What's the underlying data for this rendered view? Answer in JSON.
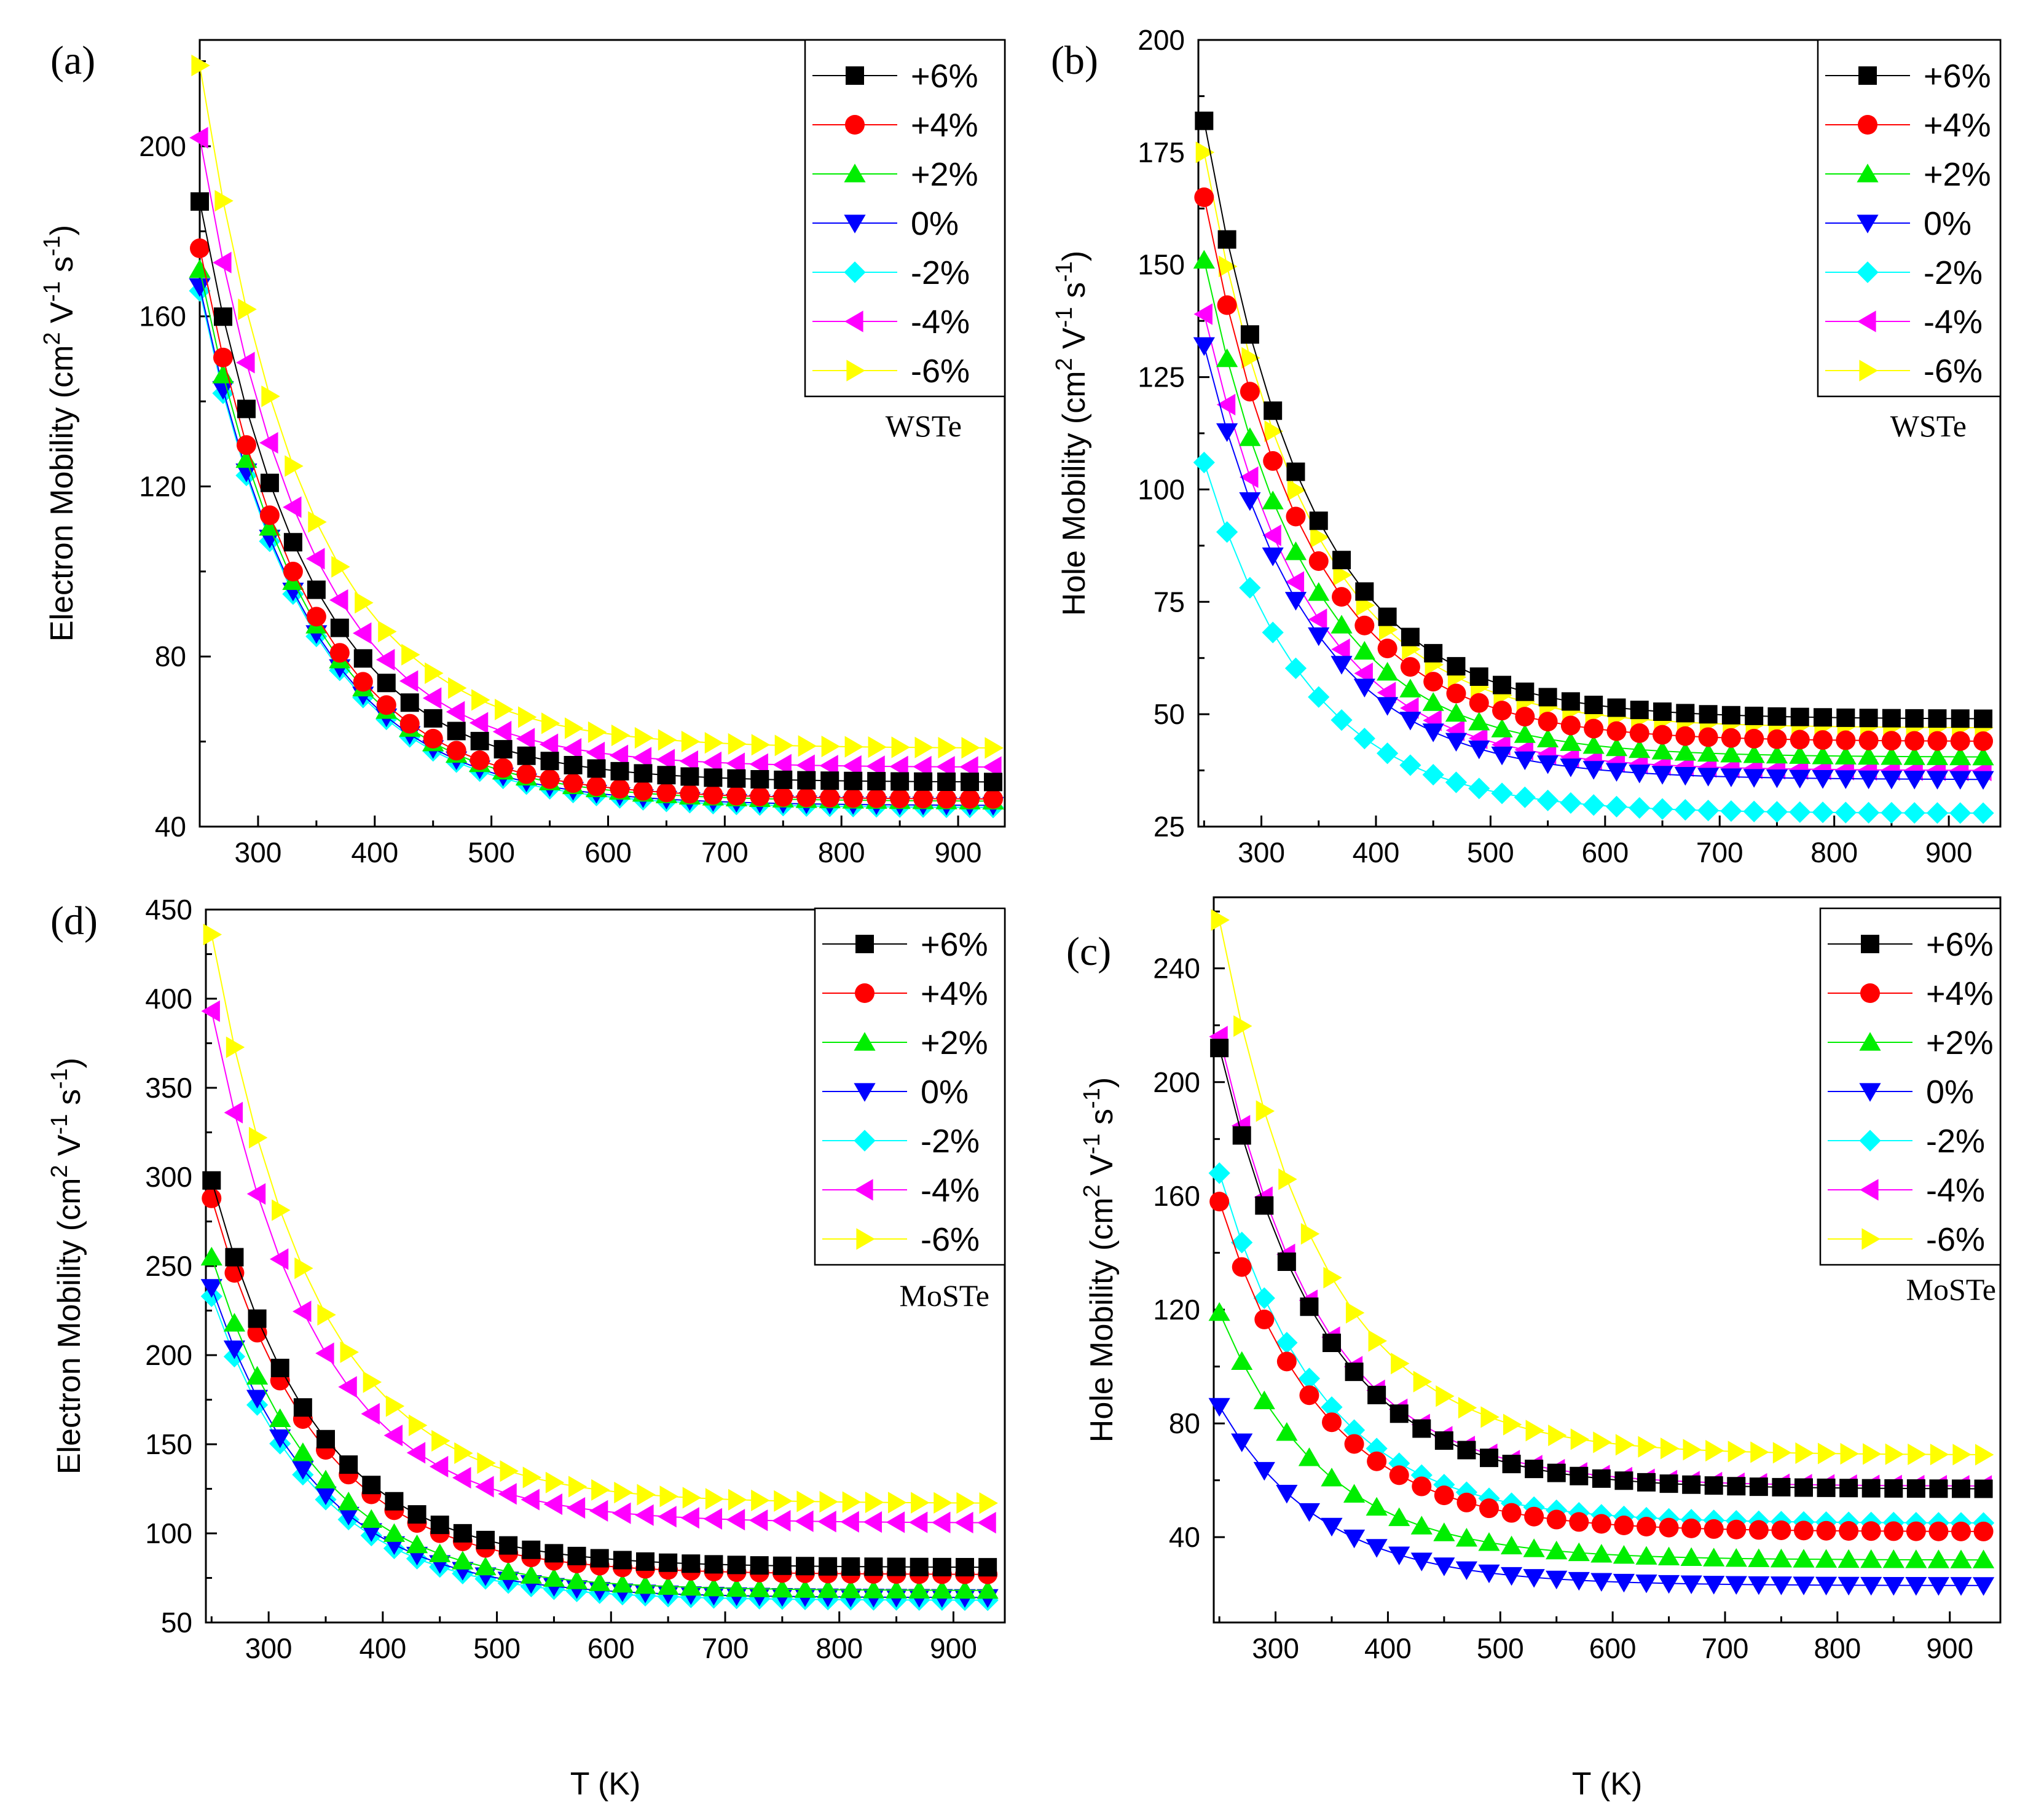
{
  "figure": {
    "panels": [
      "a",
      "b",
      "d",
      "c"
    ]
  },
  "chart_data": [
    {
      "id": "a",
      "type": "scatter",
      "panel_label": "(a)",
      "material": "WSTe",
      "xlabel": "",
      "ylabel": "Electron Mobility (cm 2 V-1 s-1)",
      "ylabel_parts": [
        "Electron Mobility (cm",
        "2",
        " V",
        "-1",
        " s",
        "-1",
        ")"
      ],
      "xlim": [
        250,
        940
      ],
      "ylim": [
        40,
        225
      ],
      "xticks": [
        300,
        400,
        500,
        600,
        700,
        800,
        900
      ],
      "yticks": [
        40,
        80,
        120,
        160,
        200
      ],
      "x": {
        "start": 250,
        "end": 930,
        "step": 20
      },
      "series": [
        {
          "name": "+6%",
          "marker": "square",
          "color": "#000000",
          "start": 187,
          "end": 50.5,
          "k": 0.013
        },
        {
          "name": "+4%",
          "marker": "circle",
          "color": "#ff0000",
          "start": 176,
          "end": 46.5,
          "k": 0.013
        },
        {
          "name": "+2%",
          "marker": "triangle-up",
          "color": "#00ee00",
          "start": 171,
          "end": 46,
          "k": 0.013
        },
        {
          "name": "0%",
          "marker": "triangle-down",
          "color": "#0000ff",
          "start": 167,
          "end": 45,
          "k": 0.013
        },
        {
          "name": "-2%",
          "marker": "diamond",
          "color": "#00ffff",
          "start": 166,
          "end": 44.5,
          "k": 0.013
        },
        {
          "name": "-4%",
          "marker": "triangle-left",
          "color": "#ff00ff",
          "start": 202,
          "end": 54,
          "k": 0.013
        },
        {
          "name": "-6%",
          "marker": "triangle-right",
          "color": "#ffff00",
          "start": 219,
          "end": 58.5,
          "k": 0.013
        }
      ]
    },
    {
      "id": "b",
      "type": "scatter",
      "panel_label": "(b)",
      "material": "WSTe",
      "xlabel": "",
      "ylabel": "Hole Mobility (cm 2 V-1 s-1)",
      "ylabel_parts": [
        "Hole Mobility (cm",
        "2",
        " V",
        "-1",
        " s",
        "-1",
        ")"
      ],
      "xlim": [
        245,
        945
      ],
      "ylim": [
        25,
        200
      ],
      "xticks": [
        300,
        400,
        500,
        600,
        700,
        800,
        900
      ],
      "yticks": [
        25,
        50,
        75,
        100,
        125,
        150,
        175,
        200
      ],
      "x": {
        "start": 250,
        "end": 930,
        "step": 20
      },
      "series": [
        {
          "name": "+6%",
          "marker": "square",
          "color": "#000000",
          "start": 182,
          "end": 49,
          "k": 0.013
        },
        {
          "name": "+4%",
          "marker": "circle",
          "color": "#ff0000",
          "start": 165,
          "end": 44,
          "k": 0.013
        },
        {
          "name": "+2%",
          "marker": "triangle-up",
          "color": "#00ee00",
          "start": 151,
          "end": 40.5,
          "k": 0.013
        },
        {
          "name": "0%",
          "marker": "triangle-down",
          "color": "#0000ff",
          "start": 132,
          "end": 35.5,
          "k": 0.013
        },
        {
          "name": "-2%",
          "marker": "diamond",
          "color": "#00ffff",
          "start": 106,
          "end": 28,
          "k": 0.013
        },
        {
          "name": "-4%",
          "marker": "triangle-left",
          "color": "#ff00ff",
          "start": 139,
          "end": 37.5,
          "k": 0.013
        },
        {
          "name": "-6%",
          "marker": "triangle-right",
          "color": "#ffff00",
          "start": 175,
          "end": 47,
          "k": 0.013
        }
      ]
    },
    {
      "id": "d",
      "type": "scatter",
      "panel_label": "(d)",
      "material": "MoSTe",
      "xlabel": "T (K)",
      "ylabel": "Electron Mobility (cm 2 V-1 s-1)",
      "ylabel_parts": [
        "Electron Mobility (cm",
        "2",
        " V",
        "-1",
        " s",
        "-1",
        ")"
      ],
      "xlim": [
        245,
        945
      ],
      "ylim": [
        50,
        450
      ],
      "xticks": [
        300,
        400,
        500,
        600,
        700,
        800,
        900
      ],
      "yticks": [
        50,
        100,
        150,
        200,
        250,
        300,
        350,
        400,
        450
      ],
      "x": {
        "start": 250,
        "end": 930,
        "step": 20
      },
      "series": [
        {
          "name": "+6%",
          "marker": "square",
          "color": "#000000",
          "start": 298,
          "end": 81,
          "k": 0.013
        },
        {
          "name": "+4%",
          "marker": "circle",
          "color": "#ff0000",
          "start": 288,
          "end": 77,
          "k": 0.013
        },
        {
          "name": "+2%",
          "marker": "triangle-up",
          "color": "#00ee00",
          "start": 255,
          "end": 68,
          "k": 0.013
        },
        {
          "name": "0%",
          "marker": "triangle-down",
          "color": "#0000ff",
          "start": 238,
          "end": 64,
          "k": 0.013
        },
        {
          "name": "-2%",
          "marker": "diamond",
          "color": "#00ffff",
          "start": 233,
          "end": 62.5,
          "k": 0.013
        },
        {
          "name": "-4%",
          "marker": "triangle-left",
          "color": "#ff00ff",
          "start": 393,
          "end": 106,
          "k": 0.013
        },
        {
          "name": "-6%",
          "marker": "triangle-right",
          "color": "#ffff00",
          "start": 436,
          "end": 117,
          "k": 0.013
        }
      ]
    },
    {
      "id": "c",
      "type": "scatter",
      "panel_label": "(c)",
      "material": "MoSTe",
      "xlabel": "T (K)",
      "ylabel": "Hole Mobility  (cm 2 V-1 s-1)",
      "ylabel_parts": [
        "Hole Mobility  (cm",
        "2",
        " V",
        "-1",
        " s",
        "-1",
        ")"
      ],
      "xlim": [
        245,
        945
      ],
      "ylim": [
        10,
        265
      ],
      "xticks": [
        300,
        400,
        500,
        600,
        700,
        800,
        900
      ],
      "yticks": [
        40,
        80,
        120,
        160,
        200,
        240
      ],
      "x": {
        "start": 250,
        "end": 930,
        "step": 20
      },
      "series": [
        {
          "name": "+6%",
          "marker": "square",
          "color": "#000000",
          "start": 212,
          "end": 57,
          "k": 0.013
        },
        {
          "name": "+4%",
          "marker": "circle",
          "color": "#ff0000",
          "start": 158,
          "end": 42,
          "k": 0.013
        },
        {
          "name": "+2%",
          "marker": "triangle-up",
          "color": "#00ee00",
          "start": 119,
          "end": 32,
          "k": 0.013
        },
        {
          "name": "0%",
          "marker": "triangle-down",
          "color": "#0000ff",
          "start": 86,
          "end": 23,
          "k": 0.013
        },
        {
          "name": "-2%",
          "marker": "diamond",
          "color": "#00ffff",
          "start": 168,
          "end": 45,
          "k": 0.013
        },
        {
          "name": "-4%",
          "marker": "triangle-left",
          "color": "#ff00ff",
          "start": 216,
          "end": 58,
          "k": 0.013
        },
        {
          "name": "-6%",
          "marker": "triangle-right",
          "color": "#ffff00",
          "start": 257,
          "end": 69,
          "k": 0.013
        }
      ]
    }
  ]
}
